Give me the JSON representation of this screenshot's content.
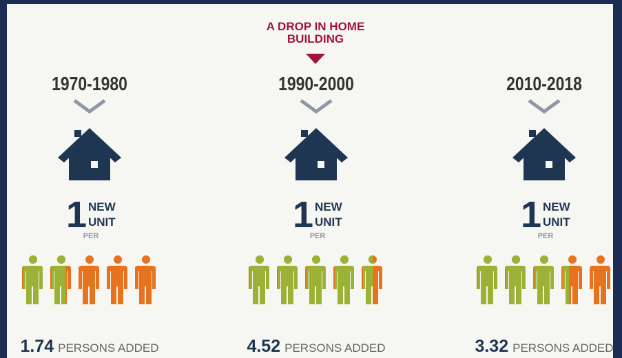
{
  "annotation": "A DROP IN HOME BUILDING",
  "panels": [
    {
      "period": "1970-1980",
      "count": 1,
      "new": "NEW",
      "unit": "UNIT",
      "per": "PER",
      "persons": 1.74,
      "persons_label": "PERSONS ADDED"
    },
    {
      "period": "1990-2000",
      "count": 1,
      "new": "NEW",
      "unit": "UNIT",
      "per": "PER",
      "persons": 4.52,
      "persons_label": "PERSONS ADDED"
    },
    {
      "period": "2010-2018",
      "count": 1,
      "new": "NEW",
      "unit": "UNIT",
      "per": "PER",
      "persons": 3.32,
      "persons_label": "PERSONS ADDED"
    }
  ]
}
